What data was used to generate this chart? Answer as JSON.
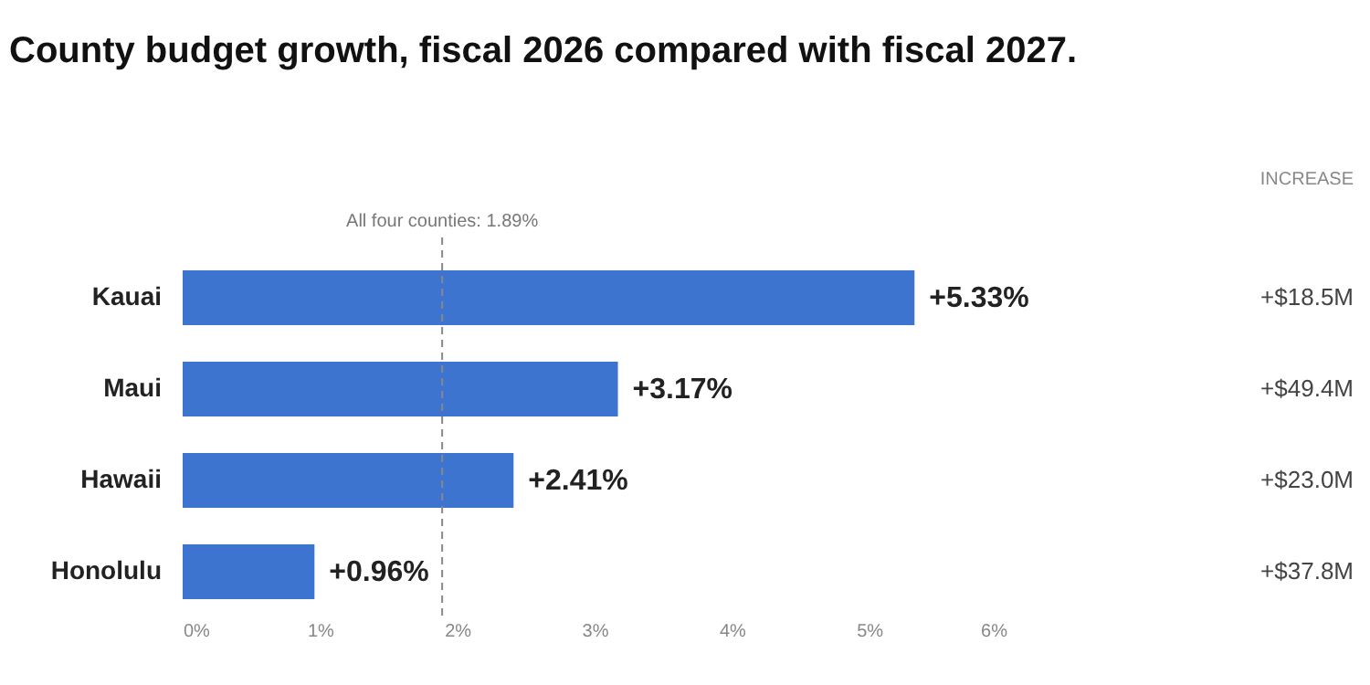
{
  "chart_data": {
    "type": "bar",
    "orientation": "horizontal",
    "title": "County budget growth, fiscal 2026 compared with fiscal 2027.",
    "categories": [
      "Kauai",
      "Maui",
      "Hawaii",
      "Honolulu"
    ],
    "values": [
      5.33,
      3.17,
      2.41,
      0.96
    ],
    "color": "#3d74d0",
    "value_labels": [
      "+5.33%",
      "+3.17%",
      "+2.41%",
      "+0.96%"
    ],
    "xlim": [
      0,
      6
    ],
    "xticks": [
      {
        "value": 0,
        "label": "0%"
      },
      {
        "value": 1,
        "label": "1%"
      },
      {
        "value": 2,
        "label": "2%"
      },
      {
        "value": 3,
        "label": "3%"
      },
      {
        "value": 4,
        "label": "4%"
      },
      {
        "value": 5,
        "label": "5%"
      },
      {
        "value": 6,
        "label": "6%"
      }
    ],
    "ref_lines": [
      {
        "axis": "x",
        "value": 1.89,
        "label": "All four counties: 1.89%",
        "color": "#888888",
        "line_style": "dashed"
      }
    ],
    "annotations": [
      "INCREASE",
      "+$18.5M",
      "+$49.4M",
      "+$23.0M",
      "+$37.8M"
    ],
    "grid": false
  }
}
